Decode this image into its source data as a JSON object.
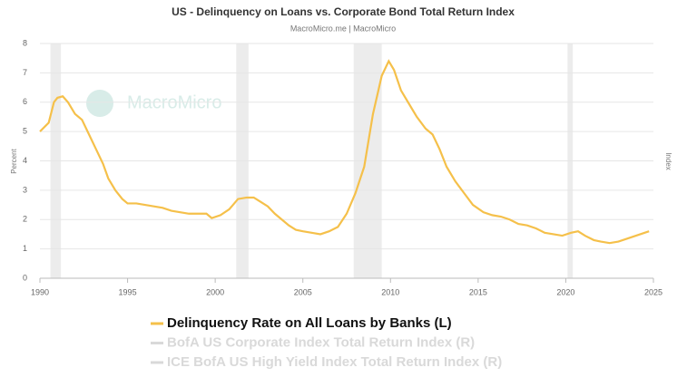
{
  "chart_data": {
    "type": "line",
    "title": "US - Delinquency on Loans vs. Corporate Bond Total Return Index",
    "subtitle": "MacroMicro.me | MacroMicro",
    "watermark": "MacroMicro",
    "y_label": "Percent",
    "y2_label": "Index",
    "xlim": [
      1990,
      2025
    ],
    "xticks": [
      1990,
      1995,
      2000,
      2005,
      2010,
      2015,
      2020,
      2025
    ],
    "ylim": [
      0,
      8
    ],
    "yticks": [
      0,
      1,
      2,
      3,
      4,
      5,
      6,
      7,
      8
    ],
    "grid": true,
    "shaded_ranges": [
      [
        1990.6,
        1991.2
      ],
      [
        2001.2,
        2001.9
      ],
      [
        2007.9,
        2009.5
      ],
      [
        2020.1,
        2020.4
      ]
    ],
    "x": [
      1990,
      1990.5,
      1990.8,
      1991.0,
      1991.3,
      1991.6,
      1992,
      1992.4,
      1992.8,
      1993.2,
      1993.6,
      1993.9,
      1994.3,
      1994.7,
      1995,
      1995.5,
      1996,
      1996.5,
      1997,
      1997.5,
      1998,
      1998.5,
      1999,
      1999.5,
      1999.8,
      2000.3,
      2000.8,
      2001.3,
      2001.8,
      2002.2,
      2002.6,
      2003,
      2003.4,
      2003.8,
      2004.2,
      2004.6,
      2005,
      2005.5,
      2006,
      2006.5,
      2007,
      2007.5,
      2008,
      2008.5,
      2009,
      2009.5,
      2009.9,
      2010.2,
      2010.6,
      2011,
      2011.5,
      2012,
      2012.4,
      2012.8,
      2013.2,
      2013.7,
      2014.2,
      2014.7,
      2015.3,
      2015.8,
      2016.3,
      2016.8,
      2017.3,
      2017.8,
      2018.3,
      2018.8,
      2019.3,
      2019.8,
      2020.3,
      2020.7,
      2021.1,
      2021.6,
      2022,
      2022.5,
      2023,
      2023.5,
      2024,
      2024.5,
      2024.75
    ],
    "series": [
      {
        "name": "Delinquency Rate on All Loans by Banks (L)",
        "color": "#f5c04a",
        "values": [
          5.0,
          5.3,
          6.0,
          6.15,
          6.2,
          6.0,
          5.6,
          5.4,
          4.9,
          4.4,
          3.9,
          3.4,
          3.0,
          2.7,
          2.55,
          2.55,
          2.5,
          2.45,
          2.4,
          2.3,
          2.25,
          2.2,
          2.2,
          2.2,
          2.05,
          2.15,
          2.35,
          2.7,
          2.75,
          2.75,
          2.6,
          2.45,
          2.2,
          2.0,
          1.8,
          1.65,
          1.6,
          1.55,
          1.5,
          1.6,
          1.75,
          2.2,
          2.9,
          3.8,
          5.6,
          6.9,
          7.4,
          7.1,
          6.4,
          6.0,
          5.5,
          5.1,
          4.9,
          4.4,
          3.8,
          3.3,
          2.9,
          2.5,
          2.25,
          2.15,
          2.1,
          2.0,
          1.85,
          1.8,
          1.7,
          1.55,
          1.5,
          1.45,
          1.55,
          1.6,
          1.45,
          1.3,
          1.25,
          1.2,
          1.25,
          1.35,
          1.45,
          1.55,
          1.6
        ]
      }
    ],
    "hidden_series": [
      {
        "name": "BofA US Corporate Index Total Return Index (R)",
        "color": "#d9d9d9"
      },
      {
        "name": "ICE BofA US High Yield Index Total Return Index (R)",
        "color": "#d9d9d9"
      }
    ]
  }
}
